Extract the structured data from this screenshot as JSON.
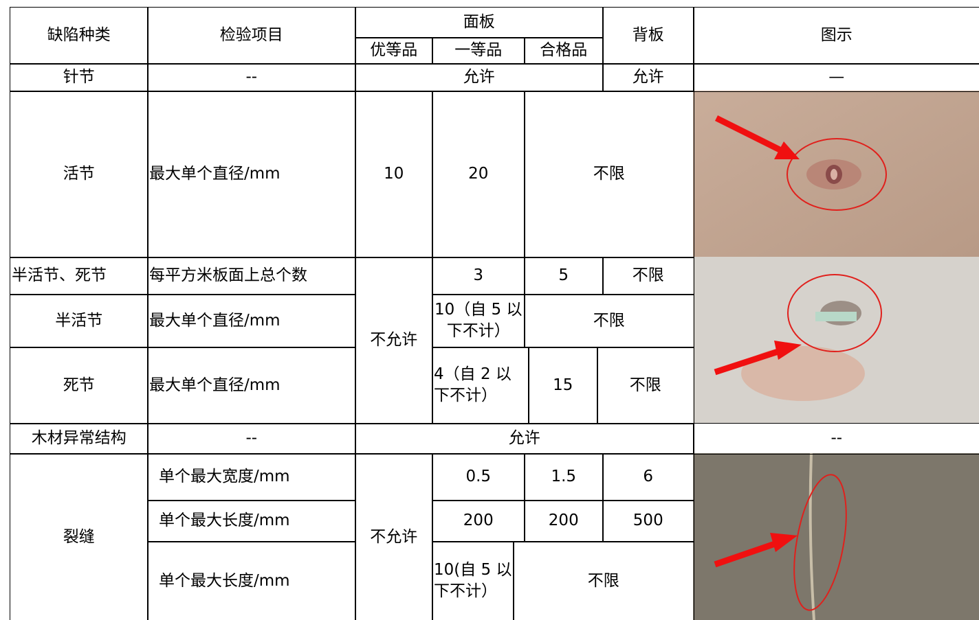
{
  "cells": [
    "缺陷种类",
    "检验项目",
    "面板",
    "优等品",
    "一等品",
    "合格品",
    "背板",
    "图示",
    "针节",
    "--",
    "允许",
    "允许",
    "—",
    "活节",
    "最大单个直径/mm",
    "10",
    "20",
    "不限",
    "半活节、死节",
    "每平方米板面上总个数",
    "不允许",
    "3",
    "5",
    "不限",
    "半活节",
    "最大单个直径/mm",
    "10（自 5 以下不计）",
    "不限",
    "死节",
    "最大单个直径/mm",
    "4（自 2 以下不计）",
    "15",
    "不限",
    "木材异常结构",
    "--",
    "允许",
    "--",
    "裂缝",
    "单个最大宽度/mm",
    "不允许",
    "0.5",
    "1.5",
    "6",
    "单个最大长度/mm",
    "200",
    "200",
    "500",
    "单个最大长度/mm",
    "10(自 5 以下不计）",
    "不限"
  ]
}
